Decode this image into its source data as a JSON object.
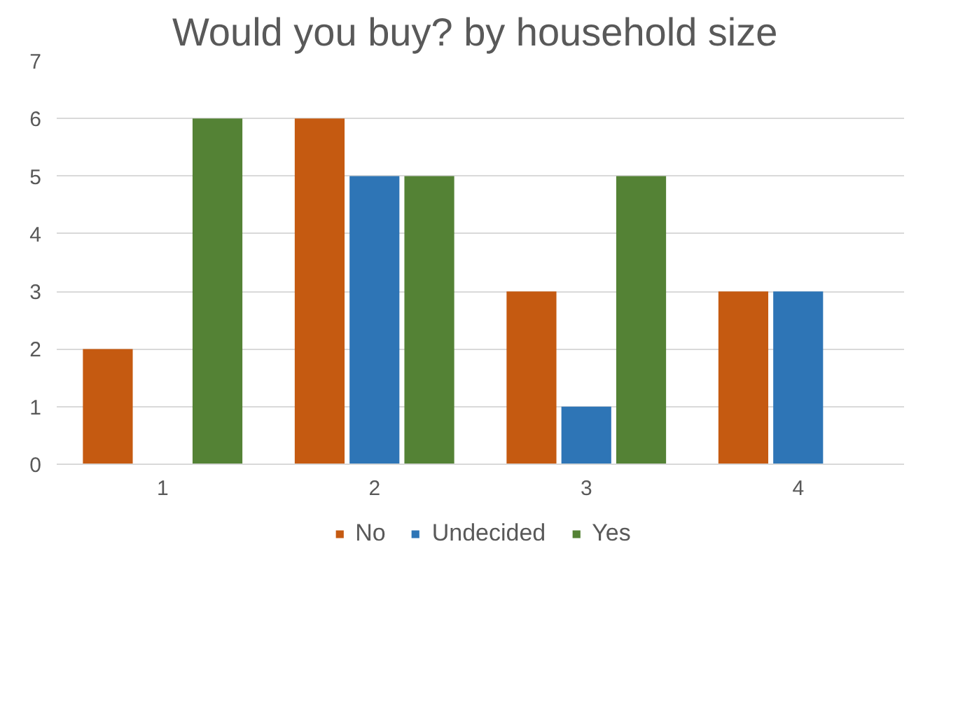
{
  "chart_data": {
    "type": "bar",
    "title": "Would you buy?  by household size",
    "categories": [
      "1",
      "2",
      "3",
      "4"
    ],
    "series": [
      {
        "name": "No",
        "color": "#c55a11",
        "values": [
          2,
          6,
          3,
          3
        ]
      },
      {
        "name": "Undecided",
        "color": "#2e75b6",
        "values": [
          0,
          5,
          1,
          3
        ]
      },
      {
        "name": "Yes",
        "color": "#548235",
        "values": [
          6,
          5,
          5,
          0
        ]
      }
    ],
    "ylim": [
      0,
      7
    ],
    "yticks": [
      0,
      1,
      2,
      3,
      4,
      5,
      6,
      7
    ],
    "grid": "y",
    "legend": "bottom"
  }
}
